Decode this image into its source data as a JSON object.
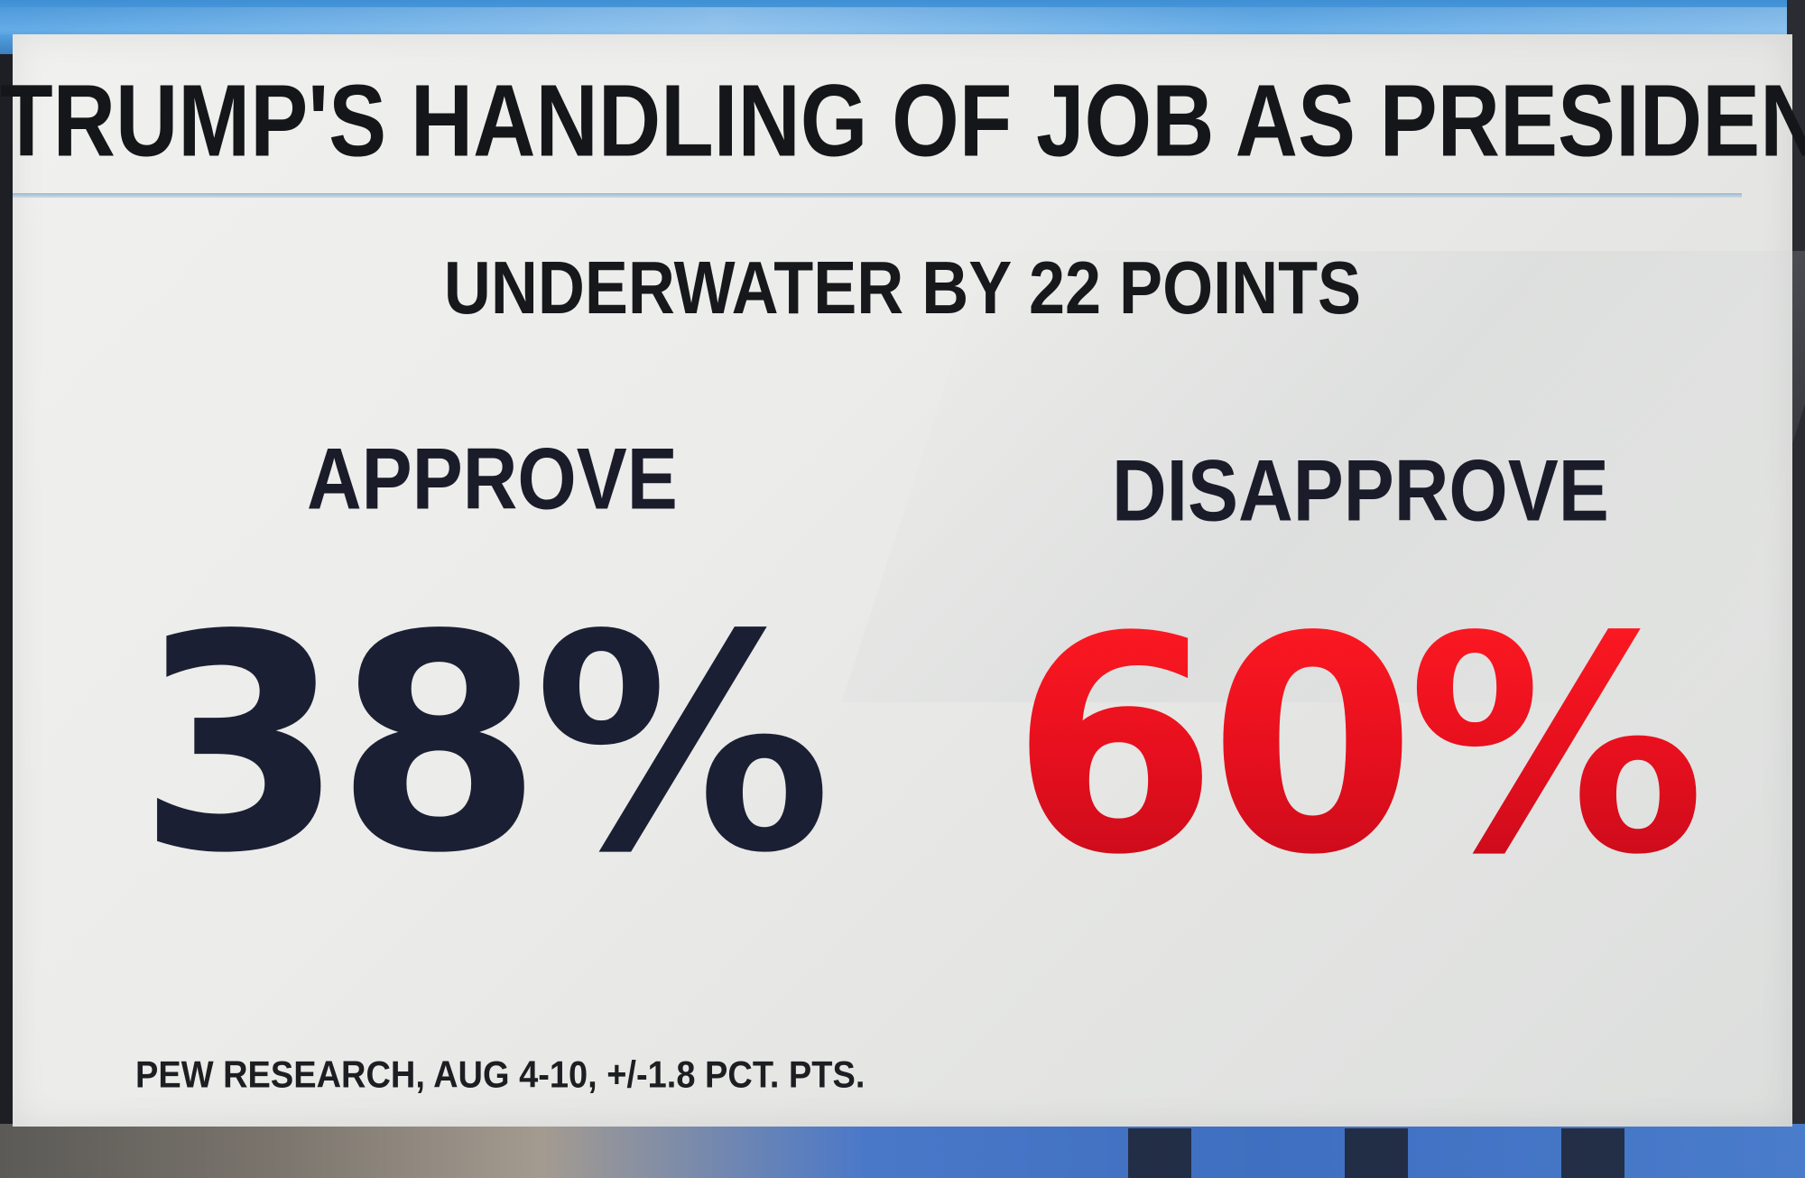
{
  "graphic": {
    "title": "TRUMP'S HANDLING OF JOB AS PRESIDENT",
    "subtitle": "UNDERWATER BY 22 POINTS",
    "approve": {
      "label": "APPROVE",
      "value": "38%",
      "color": "#1b1f33"
    },
    "disapprove": {
      "label": "DISAPPROVE",
      "value": "60%",
      "color": "#e8101e"
    },
    "source": "PEW RESEARCH, AUG 4-10, +/-1.8 PCT. PTS."
  },
  "colors": {
    "card_background": "#ecece9",
    "divider": "#9bb7cf",
    "text_dark": "#141619"
  }
}
